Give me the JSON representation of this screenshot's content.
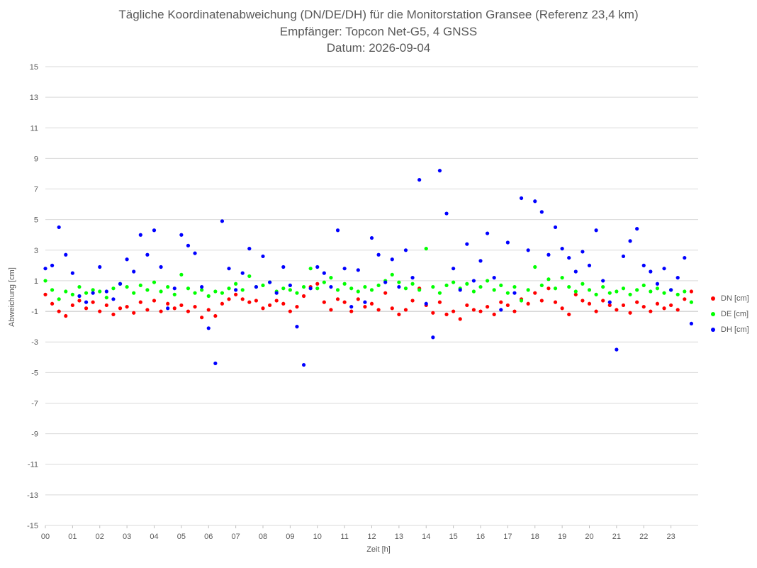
{
  "chart": {
    "title": "Tägliche Koordinatenabweichung (DN/DE/DH) für die Monitorstation Gransee (Referenz 23,4 km)",
    "subtitle": "Empfänger: Topcon Net-G5, 4 GNSS",
    "date_line": "Datum: 2026-09-04",
    "ylabel": "Abweichung [cm]",
    "xlabel": "Zeit [h]"
  },
  "legend": [
    {
      "label": "DN [cm]",
      "color": "#ff0000"
    },
    {
      "label": "DE [cm]",
      "color": "#00ff00"
    },
    {
      "label": "DH [cm]",
      "color": "#0000ff"
    }
  ],
  "chart_data": {
    "type": "scatter",
    "title": "Tägliche Koordinatenabweichung (DN/DE/DH) für die Monitorstation Gransee (Referenz 23,4 km)",
    "xlabel": "Zeit [h]",
    "ylabel": "Abweichung [cm]",
    "xlim": [
      0,
      24
    ],
    "ylim": [
      -15,
      15
    ],
    "x_ticks": [
      "00",
      "01",
      "02",
      "03",
      "04",
      "05",
      "06",
      "07",
      "08",
      "09",
      "10",
      "11",
      "12",
      "13",
      "14",
      "15",
      "16",
      "17",
      "18",
      "19",
      "20",
      "21",
      "22",
      "23"
    ],
    "y_ticks": [
      15,
      13,
      11,
      9,
      7,
      5,
      3,
      1,
      -1,
      -3,
      -5,
      -7,
      -9,
      -11,
      -13,
      -15
    ],
    "grid": "horizontal",
    "legend_position": "right",
    "series": [
      {
        "name": "DN [cm]",
        "color": "#ff0000",
        "points": [
          [
            0.0,
            0.1
          ],
          [
            0.25,
            -0.5
          ],
          [
            0.5,
            -1.0
          ],
          [
            0.75,
            -1.3
          ],
          [
            1.0,
            -0.6
          ],
          [
            1.25,
            -0.3
          ],
          [
            1.5,
            -0.8
          ],
          [
            1.75,
            -0.4
          ],
          [
            2.0,
            -1.0
          ],
          [
            2.25,
            -0.6
          ],
          [
            2.5,
            -1.2
          ],
          [
            2.75,
            -0.8
          ],
          [
            3.0,
            -0.7
          ],
          [
            3.25,
            -1.1
          ],
          [
            3.5,
            -0.4
          ],
          [
            3.75,
            -0.9
          ],
          [
            4.0,
            -0.3
          ],
          [
            4.25,
            -1.0
          ],
          [
            4.5,
            -0.5
          ],
          [
            4.75,
            -0.8
          ],
          [
            5.0,
            -0.6
          ],
          [
            5.25,
            -1.0
          ],
          [
            5.5,
            -0.7
          ],
          [
            5.75,
            -1.4
          ],
          [
            6.0,
            -0.9
          ],
          [
            6.25,
            -1.3
          ],
          [
            6.5,
            -0.5
          ],
          [
            6.75,
            -0.2
          ],
          [
            7.0,
            0.1
          ],
          [
            7.25,
            -0.2
          ],
          [
            7.5,
            -0.4
          ],
          [
            7.75,
            -0.3
          ],
          [
            8.0,
            -0.8
          ],
          [
            8.25,
            -0.6
          ],
          [
            8.5,
            -0.3
          ],
          [
            8.75,
            -0.5
          ],
          [
            9.0,
            -1.0
          ],
          [
            9.25,
            -0.7
          ],
          [
            9.5,
            0.0
          ],
          [
            9.75,
            0.6
          ],
          [
            10.0,
            0.8
          ],
          [
            10.25,
            -0.4
          ],
          [
            10.5,
            -0.9
          ],
          [
            10.75,
            -0.2
          ],
          [
            11.0,
            -0.4
          ],
          [
            11.25,
            -1.0
          ],
          [
            11.5,
            -0.2
          ],
          [
            11.75,
            -0.7
          ],
          [
            12.0,
            -0.5
          ],
          [
            12.25,
            -0.9
          ],
          [
            12.5,
            0.2
          ],
          [
            12.75,
            -0.8
          ],
          [
            13.0,
            -1.2
          ],
          [
            13.25,
            -0.9
          ],
          [
            13.5,
            -0.3
          ],
          [
            13.75,
            0.5
          ],
          [
            14.0,
            -0.6
          ],
          [
            14.25,
            -1.1
          ],
          [
            14.5,
            -0.4
          ],
          [
            14.75,
            -1.2
          ],
          [
            15.0,
            -1.0
          ],
          [
            15.25,
            -1.5
          ],
          [
            15.5,
            -0.6
          ],
          [
            15.75,
            -0.9
          ],
          [
            16.0,
            -1.0
          ],
          [
            16.25,
            -0.7
          ],
          [
            16.5,
            -1.2
          ],
          [
            16.75,
            -0.4
          ],
          [
            17.0,
            -0.6
          ],
          [
            17.25,
            -1.0
          ],
          [
            17.5,
            -0.2
          ],
          [
            17.75,
            -0.5
          ],
          [
            18.0,
            0.2
          ],
          [
            18.25,
            -0.3
          ],
          [
            18.5,
            0.5
          ],
          [
            18.75,
            -0.4
          ],
          [
            19.0,
            -0.8
          ],
          [
            19.25,
            -1.2
          ],
          [
            19.5,
            0.1
          ],
          [
            19.75,
            -0.3
          ],
          [
            20.0,
            -0.5
          ],
          [
            20.25,
            -1.0
          ],
          [
            20.5,
            -0.3
          ],
          [
            20.75,
            -0.6
          ],
          [
            21.0,
            -0.9
          ],
          [
            21.25,
            -0.6
          ],
          [
            21.5,
            -1.1
          ],
          [
            21.75,
            -0.4
          ],
          [
            22.0,
            -0.7
          ],
          [
            22.25,
            -1.0
          ],
          [
            22.5,
            -0.5
          ],
          [
            22.75,
            -0.8
          ],
          [
            23.0,
            -0.6
          ],
          [
            23.25,
            -0.9
          ],
          [
            23.5,
            -0.2
          ],
          [
            23.75,
            0.3
          ]
        ]
      },
      {
        "name": "DE [cm]",
        "color": "#00ff00",
        "points": [
          [
            0.0,
            1.0
          ],
          [
            0.25,
            0.4
          ],
          [
            0.5,
            -0.2
          ],
          [
            0.75,
            0.3
          ],
          [
            1.0,
            0.1
          ],
          [
            1.25,
            0.6
          ],
          [
            1.5,
            0.2
          ],
          [
            1.75,
            0.4
          ],
          [
            2.0,
            0.3
          ],
          [
            2.25,
            -0.1
          ],
          [
            2.5,
            0.5
          ],
          [
            2.75,
            0.8
          ],
          [
            3.0,
            0.6
          ],
          [
            3.25,
            0.2
          ],
          [
            3.5,
            0.7
          ],
          [
            3.75,
            0.4
          ],
          [
            4.0,
            0.9
          ],
          [
            4.25,
            0.3
          ],
          [
            4.5,
            0.6
          ],
          [
            4.75,
            0.1
          ],
          [
            5.0,
            1.4
          ],
          [
            5.25,
            0.5
          ],
          [
            5.5,
            0.2
          ],
          [
            5.75,
            0.4
          ],
          [
            6.0,
            0.0
          ],
          [
            6.25,
            0.3
          ],
          [
            6.5,
            0.2
          ],
          [
            6.75,
            0.5
          ],
          [
            7.0,
            0.8
          ],
          [
            7.25,
            0.4
          ],
          [
            7.5,
            1.3
          ],
          [
            7.75,
            0.6
          ],
          [
            8.0,
            0.7
          ],
          [
            8.25,
            0.9
          ],
          [
            8.5,
            0.3
          ],
          [
            8.75,
            0.5
          ],
          [
            9.0,
            0.4
          ],
          [
            9.25,
            0.2
          ],
          [
            9.5,
            0.6
          ],
          [
            9.75,
            1.8
          ],
          [
            10.0,
            0.5
          ],
          [
            10.25,
            0.9
          ],
          [
            10.5,
            1.2
          ],
          [
            10.75,
            0.4
          ],
          [
            11.0,
            0.8
          ],
          [
            11.25,
            0.5
          ],
          [
            11.5,
            0.3
          ],
          [
            11.75,
            0.6
          ],
          [
            12.0,
            0.4
          ],
          [
            12.25,
            0.7
          ],
          [
            12.5,
            1.0
          ],
          [
            12.75,
            1.4
          ],
          [
            13.0,
            0.9
          ],
          [
            13.25,
            0.5
          ],
          [
            13.5,
            0.8
          ],
          [
            13.75,
            0.4
          ],
          [
            14.0,
            3.1
          ],
          [
            14.25,
            0.6
          ],
          [
            14.5,
            0.2
          ],
          [
            14.75,
            0.7
          ],
          [
            15.0,
            0.9
          ],
          [
            15.25,
            0.5
          ],
          [
            15.5,
            0.8
          ],
          [
            15.75,
            0.3
          ],
          [
            16.0,
            0.6
          ],
          [
            16.25,
            1.0
          ],
          [
            16.5,
            0.4
          ],
          [
            16.75,
            0.7
          ],
          [
            17.0,
            0.2
          ],
          [
            17.25,
            0.6
          ],
          [
            17.5,
            -0.3
          ],
          [
            17.75,
            0.4
          ],
          [
            18.0,
            1.9
          ],
          [
            18.25,
            0.7
          ],
          [
            18.5,
            1.1
          ],
          [
            18.75,
            0.5
          ],
          [
            19.0,
            1.2
          ],
          [
            19.25,
            0.6
          ],
          [
            19.5,
            0.3
          ],
          [
            19.75,
            0.8
          ],
          [
            20.0,
            0.4
          ],
          [
            20.25,
            0.1
          ],
          [
            20.5,
            0.6
          ],
          [
            20.75,
            0.2
          ],
          [
            21.0,
            0.3
          ],
          [
            21.25,
            0.5
          ],
          [
            21.5,
            0.1
          ],
          [
            21.75,
            0.4
          ],
          [
            22.0,
            0.7
          ],
          [
            22.25,
            0.3
          ],
          [
            22.5,
            0.5
          ],
          [
            22.75,
            0.2
          ],
          [
            23.0,
            0.4
          ],
          [
            23.25,
            0.1
          ],
          [
            23.5,
            0.3
          ],
          [
            23.75,
            -0.4
          ]
        ]
      },
      {
        "name": "DH [cm]",
        "color": "#0000ff",
        "points": [
          [
            0.0,
            1.8
          ],
          [
            0.25,
            2.0
          ],
          [
            0.5,
            4.5
          ],
          [
            0.75,
            2.7
          ],
          [
            1.0,
            1.5
          ],
          [
            1.25,
            0.0
          ],
          [
            1.5,
            -0.4
          ],
          [
            1.75,
            0.2
          ],
          [
            2.0,
            1.9
          ],
          [
            2.25,
            0.3
          ],
          [
            2.5,
            -0.2
          ],
          [
            2.75,
            0.8
          ],
          [
            3.0,
            2.4
          ],
          [
            3.25,
            1.6
          ],
          [
            3.5,
            4.0
          ],
          [
            3.75,
            2.7
          ],
          [
            4.0,
            4.3
          ],
          [
            4.25,
            1.9
          ],
          [
            4.5,
            -0.8
          ],
          [
            4.75,
            0.5
          ],
          [
            5.0,
            4.0
          ],
          [
            5.25,
            3.3
          ],
          [
            5.5,
            2.8
          ],
          [
            5.75,
            0.6
          ],
          [
            6.0,
            -2.1
          ],
          [
            6.25,
            -4.4
          ],
          [
            6.5,
            4.9
          ],
          [
            6.75,
            1.8
          ],
          [
            7.0,
            0.4
          ],
          [
            7.25,
            1.5
          ],
          [
            7.5,
            3.1
          ],
          [
            7.75,
            0.6
          ],
          [
            8.0,
            2.6
          ],
          [
            8.25,
            0.9
          ],
          [
            8.5,
            0.2
          ],
          [
            8.75,
            1.9
          ],
          [
            9.0,
            0.7
          ],
          [
            9.25,
            -2.0
          ],
          [
            9.5,
            -4.5
          ],
          [
            9.75,
            0.5
          ],
          [
            10.0,
            1.9
          ],
          [
            10.25,
            1.5
          ],
          [
            10.5,
            0.6
          ],
          [
            10.75,
            4.3
          ],
          [
            11.0,
            1.8
          ],
          [
            11.25,
            -0.7
          ],
          [
            11.5,
            1.7
          ],
          [
            11.75,
            -0.4
          ],
          [
            12.0,
            3.8
          ],
          [
            12.25,
            2.7
          ],
          [
            12.5,
            0.9
          ],
          [
            12.75,
            2.4
          ],
          [
            13.0,
            0.6
          ],
          [
            13.25,
            3.0
          ],
          [
            13.5,
            1.2
          ],
          [
            13.75,
            7.6
          ],
          [
            14.0,
            -0.5
          ],
          [
            14.25,
            -2.7
          ],
          [
            14.5,
            8.2
          ],
          [
            14.75,
            5.4
          ],
          [
            15.0,
            1.8
          ],
          [
            15.25,
            0.4
          ],
          [
            15.5,
            3.4
          ],
          [
            15.75,
            1.0
          ],
          [
            16.0,
            2.3
          ],
          [
            16.25,
            4.1
          ],
          [
            16.5,
            1.2
          ],
          [
            16.75,
            -0.9
          ],
          [
            17.0,
            3.5
          ],
          [
            17.25,
            0.2
          ],
          [
            17.5,
            6.4
          ],
          [
            17.75,
            3.0
          ],
          [
            18.0,
            6.2
          ],
          [
            18.25,
            5.5
          ],
          [
            18.5,
            2.7
          ],
          [
            18.75,
            4.5
          ],
          [
            19.0,
            3.1
          ],
          [
            19.25,
            2.5
          ],
          [
            19.5,
            1.6
          ],
          [
            19.75,
            2.9
          ],
          [
            20.0,
            2.0
          ],
          [
            20.25,
            4.3
          ],
          [
            20.5,
            1.0
          ],
          [
            20.75,
            -0.4
          ],
          [
            21.0,
            -3.5
          ],
          [
            21.25,
            2.6
          ],
          [
            21.5,
            3.6
          ],
          [
            21.75,
            4.4
          ],
          [
            22.0,
            2.0
          ],
          [
            22.25,
            1.6
          ],
          [
            22.5,
            0.8
          ],
          [
            22.75,
            1.8
          ],
          [
            23.0,
            0.4
          ],
          [
            23.25,
            1.2
          ],
          [
            23.5,
            2.5
          ],
          [
            23.75,
            -1.8
          ]
        ]
      }
    ]
  }
}
